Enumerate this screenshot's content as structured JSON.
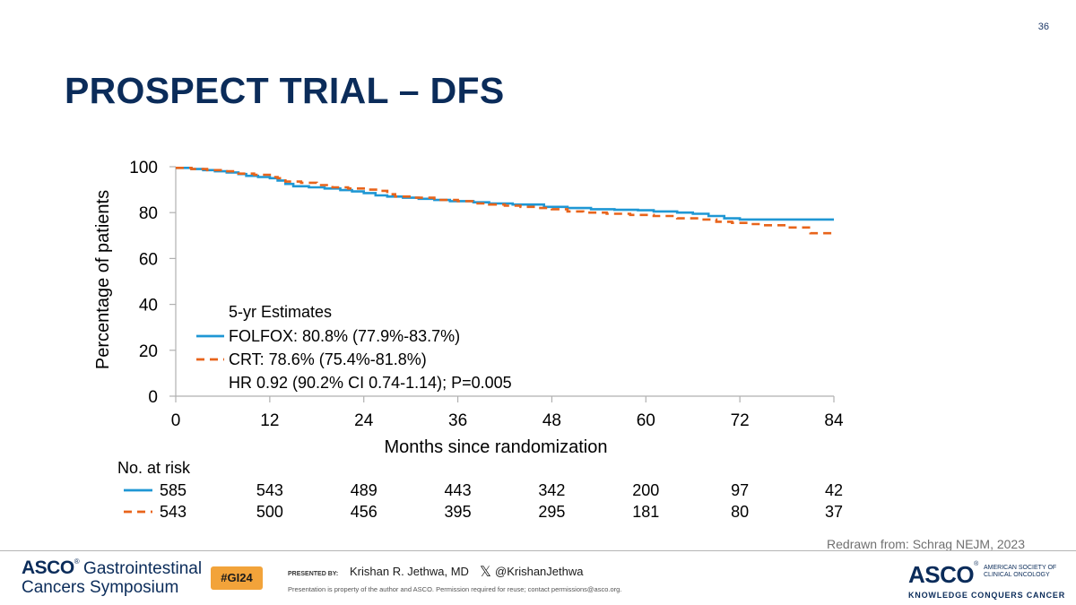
{
  "slide": {
    "number": "36",
    "title": "PROSPECT TRIAL – DFS"
  },
  "chart_data": {
    "type": "line",
    "title": "PROSPECT TRIAL – DFS",
    "xlabel": "Months since randomization",
    "ylabel": "Percentage of patients",
    "xlim": [
      0,
      84
    ],
    "ylim": [
      0,
      100
    ],
    "xticks": [
      0,
      12,
      24,
      36,
      48,
      60,
      72,
      84
    ],
    "yticks": [
      0,
      20,
      40,
      60,
      80,
      100
    ],
    "legend": {
      "heading": "5-yr Estimates",
      "entries": [
        "FOLFOX: 80.8% (77.9%-83.7%)",
        "CRT: 78.6% (75.4%-81.8%)"
      ],
      "note": "HR 0.92 (90.2% CI 0.74-1.14); P=0.005",
      "position": "bottom-left"
    },
    "series": [
      {
        "name": "FOLFOX",
        "color": "#1f97d4",
        "style": "solid",
        "x": [
          0,
          2,
          3.5,
          5,
          6.5,
          8,
          9,
          10.5,
          12,
          13,
          14,
          15,
          17,
          19,
          21,
          22.5,
          24,
          25.5,
          27,
          29,
          31,
          33,
          35,
          38,
          40,
          43,
          47,
          50,
          53,
          56,
          59,
          61,
          64,
          66,
          68,
          70,
          72,
          74,
          78,
          84
        ],
        "y": [
          99.5,
          99,
          98.5,
          98,
          97.5,
          96.8,
          96,
          95.5,
          95,
          94,
          92.5,
          91.5,
          91,
          90.5,
          89.8,
          89.2,
          88.5,
          87.5,
          87,
          86.5,
          86,
          85.5,
          85,
          84.5,
          84,
          83.5,
          82.5,
          82,
          81.5,
          81.2,
          81,
          80.5,
          80,
          79.5,
          78.5,
          77.5,
          77,
          77,
          77,
          77
        ]
      },
      {
        "name": "CRT",
        "color": "#e8641b",
        "style": "dashed",
        "x": [
          0,
          2,
          4,
          6,
          8,
          10,
          12,
          13,
          14,
          16,
          18,
          20,
          22,
          24,
          26,
          27,
          28,
          30,
          33,
          36,
          38,
          40,
          42,
          44,
          46,
          48,
          50,
          52,
          55,
          58,
          61,
          64,
          67,
          69,
          71,
          73,
          75,
          78,
          81,
          84
        ],
        "y": [
          99.5,
          99,
          98.5,
          98,
          97,
          96.5,
          95.5,
          95,
          93.5,
          93,
          92,
          91,
          90.5,
          90,
          89.5,
          88,
          87,
          86.5,
          85.5,
          85,
          84,
          83.5,
          83,
          82.5,
          82,
          81.5,
          80.5,
          80,
          79.5,
          79,
          78.5,
          77.5,
          77,
          76,
          75.5,
          75,
          74.5,
          73.5,
          71,
          71
        ]
      }
    ],
    "risk_table": {
      "label": "No. at risk",
      "times": [
        0,
        12,
        24,
        36,
        48,
        60,
        72,
        84
      ],
      "rows": [
        {
          "name": "FOLFOX",
          "values": [
            "585",
            "543",
            "489",
            "443",
            "342",
            "200",
            "97",
            "42"
          ]
        },
        {
          "name": "CRT",
          "values": [
            "543",
            "500",
            "456",
            "395",
            "295",
            "181",
            "80",
            "37"
          ]
        }
      ]
    }
  },
  "citation": "Redrawn from: Schrag NEJM, 2023",
  "footer": {
    "org_short": "ASCO",
    "reg_mark": "®",
    "symposium_line1": "Gastrointestinal",
    "symposium_line2": "Cancers Symposium",
    "hashtag": "#GI24",
    "presented_by": "PRESENTED BY:",
    "presenter": "Krishan R. Jethwa, MD",
    "x_symbol": "𝕏",
    "handle": "@KrishanJethwa",
    "disclaimer": "Presentation is property of the author and ASCO. Permission required for reuse; contact permissions@asco.org.",
    "society_line1": "AMERICAN SOCIETY OF",
    "society_line2": "CLINICAL ONCOLOGY",
    "tagline": "KNOWLEDGE CONQUERS CANCER"
  }
}
